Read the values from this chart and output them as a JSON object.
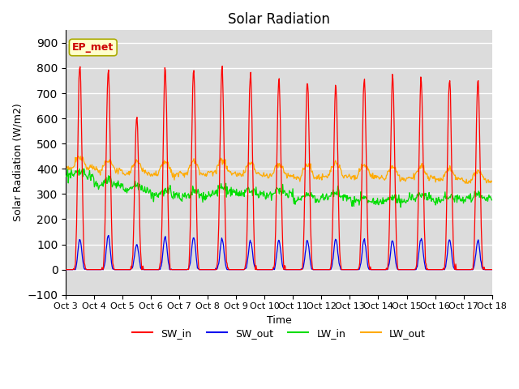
{
  "title": "Solar Radiation",
  "xlabel": "Time",
  "ylabel": "Solar Radiation (W/m2)",
  "ylim": [
    -100,
    950
  ],
  "yticks": [
    -100,
    0,
    100,
    200,
    300,
    400,
    500,
    600,
    700,
    800,
    900
  ],
  "x_tick_labels": [
    "Oct 3",
    "Oct 4",
    "Oct 5",
    "Oct 6",
    "Oct 7",
    "Oct 8",
    "Oct 9",
    "Oct 10",
    "Oct 11",
    "Oct 12",
    "Oct 13",
    "Oct 14",
    "Oct 15",
    "Oct 16",
    "Oct 17",
    "Oct 18"
  ],
  "colors": {
    "SW_in": "#ff0000",
    "SW_out": "#0000ee",
    "LW_in": "#00dd00",
    "LW_out": "#ffaa00"
  },
  "annotation_text": "EP_met",
  "annotation_color": "#cc0000",
  "annotation_bg": "#ffffcc",
  "annotation_edge": "#aaaa00",
  "bg_color": "#dcdcdc",
  "title_fontsize": 12,
  "legend_fontsize": 9,
  "tick_fontsize": 8,
  "num_days": 15,
  "SW_in_peaks": [
    810,
    800,
    610,
    800,
    790,
    805,
    780,
    755,
    755,
    735,
    765,
    760,
    765,
    765,
    755
  ],
  "SW_out_peaks": [
    120,
    135,
    100,
    130,
    130,
    120,
    115,
    115,
    115,
    120,
    120,
    115,
    125,
    120,
    115
  ],
  "LW_in_base": [
    375,
    340,
    315,
    295,
    290,
    305,
    300,
    298,
    280,
    288,
    268,
    272,
    282,
    278,
    282
  ],
  "LW_out_base": [
    405,
    393,
    383,
    378,
    378,
    382,
    377,
    372,
    367,
    372,
    367,
    362,
    362,
    357,
    352
  ],
  "LW_out_bump": [
    40,
    42,
    45,
    48,
    50,
    50,
    48,
    45,
    48,
    50,
    50,
    50,
    48,
    45,
    42
  ],
  "LW_in_bump": [
    15,
    15,
    15,
    18,
    20,
    20,
    18,
    15,
    18,
    18,
    18,
    18,
    15,
    15,
    15
  ]
}
